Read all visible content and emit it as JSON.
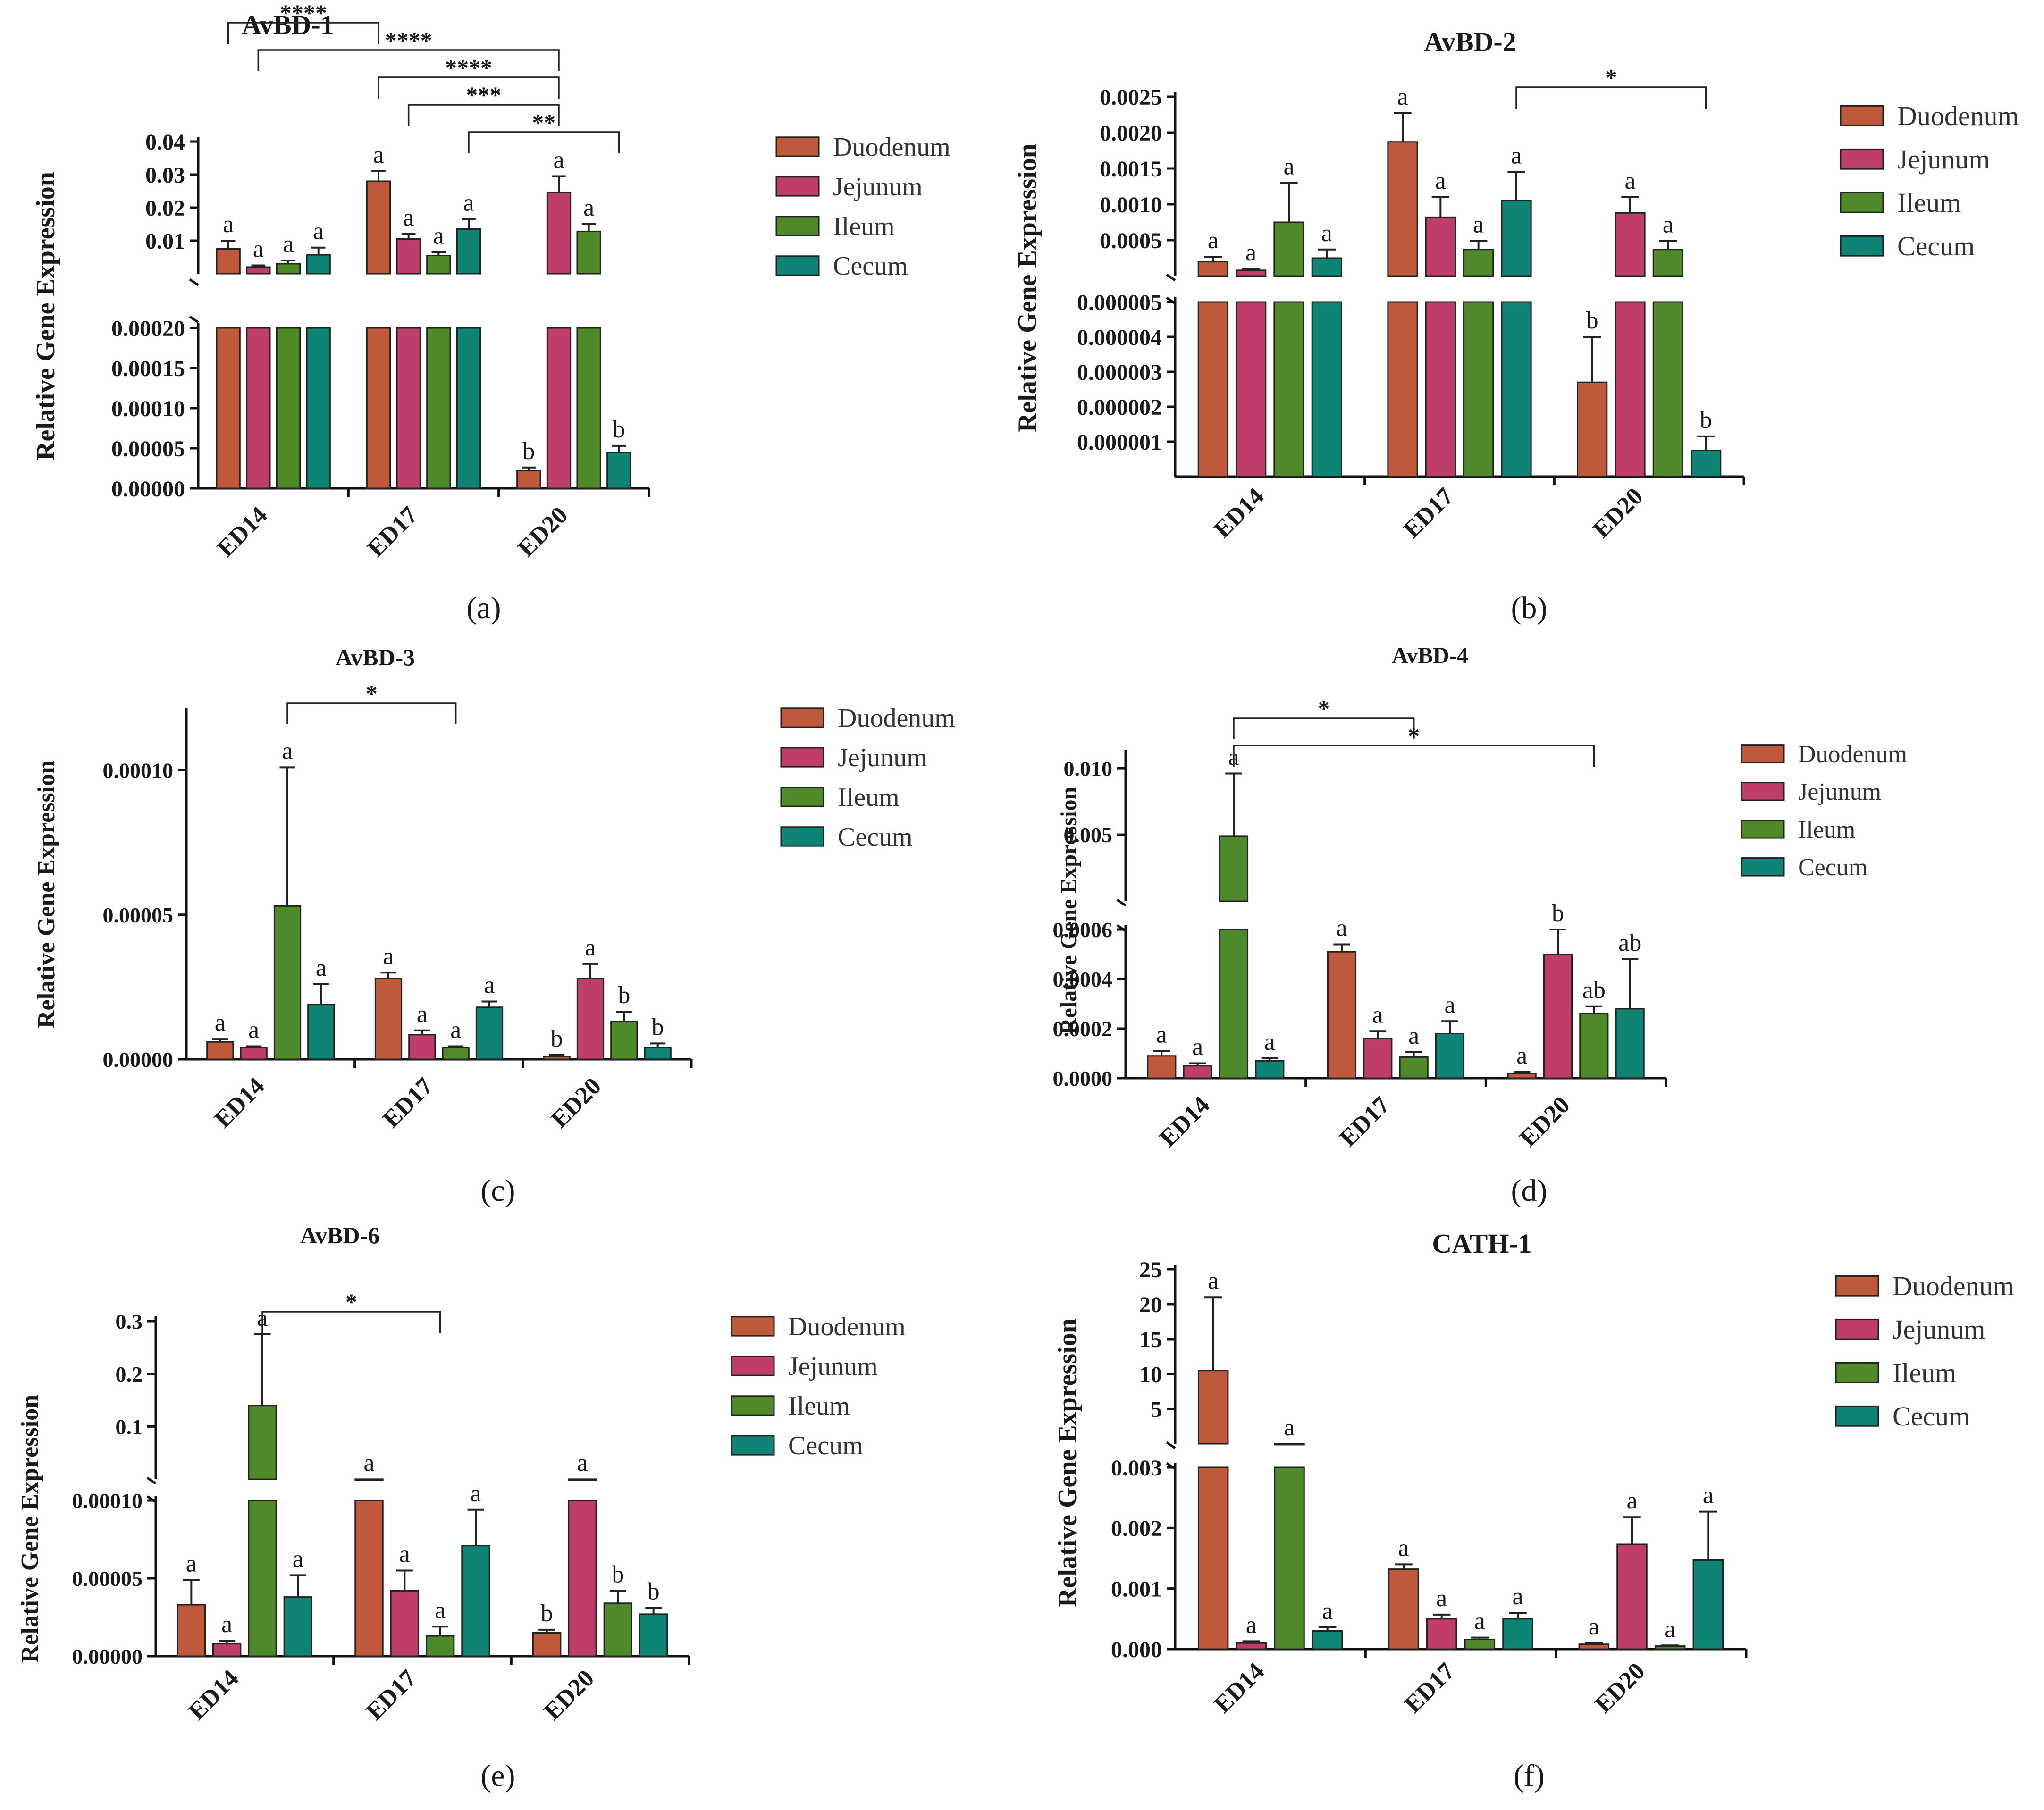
{
  "series_colors": {
    "Duodenum": "#c0593b",
    "Jejunum": "#bf3d6b",
    "Ileum": "#4e8a2a",
    "Cecum": "#0e8474"
  },
  "legend_text_colors": {
    "Duodenum": "#b0241a",
    "Jejunum": "#8a1f4d",
    "Ileum": "#3e7a1a",
    "Cecum": "#0e6e5e"
  },
  "chart_data": [
    {
      "panel": "(a)",
      "title": "AvBD-1",
      "type": "bar",
      "ylabel": "Relative Gene Expression",
      "categories": [
        "ED14",
        "ED17",
        "ED20"
      ],
      "upper": {
        "range": [
          0,
          0.04
        ],
        "ticks": [
          "0.01",
          "0.02",
          "0.03",
          "0.04"
        ],
        "tick_values": [
          0.01,
          0.02,
          0.03,
          0.04
        ]
      },
      "lower": {
        "range": [
          0,
          0.0002
        ],
        "ticks": [
          "0.00000",
          "0.00005",
          "0.00010",
          "0.00015",
          "0.00020"
        ],
        "tick_values": [
          0,
          5e-05,
          0.0001,
          0.00015,
          0.0002
        ]
      },
      "series": [
        {
          "name": "Duodenum",
          "values": [
            0.0075,
            0.028,
            2.2e-05
          ],
          "errors": [
            0.0025,
            0.003,
            4e-06
          ],
          "letters": [
            "a",
            "a",
            "b"
          ]
        },
        {
          "name": "Jejunum",
          "values": [
            0.002,
            0.0105,
            0.0245
          ],
          "errors": [
            0.0005,
            0.0015,
            0.005
          ],
          "letters": [
            "a",
            "a",
            "a"
          ]
        },
        {
          "name": "Ileum",
          "values": [
            0.003,
            0.0055,
            0.0128
          ],
          "errors": [
            0.001,
            0.001,
            0.0022
          ],
          "letters": [
            "a",
            "a",
            "a"
          ]
        },
        {
          "name": "Cecum",
          "values": [
            0.0057,
            0.0135,
            4.5e-05
          ],
          "errors": [
            0.0022,
            0.003,
            8e-06
          ],
          "letters": [
            "a",
            "a",
            "b"
          ]
        }
      ],
      "significance": [
        {
          "from": [
            0,
            0
          ],
          "to": [
            1,
            0
          ],
          "label": "****"
        },
        {
          "from": [
            0,
            1
          ],
          "to": [
            2,
            1
          ],
          "label": "****"
        },
        {
          "from": [
            1,
            0
          ],
          "to": [
            2,
            1
          ],
          "label": "****"
        },
        {
          "from": [
            1,
            1
          ],
          "to": [
            2,
            1
          ],
          "label": "***"
        },
        {
          "from": [
            1,
            3
          ],
          "to": [
            2,
            3
          ],
          "label": "**"
        }
      ]
    },
    {
      "panel": "(b)",
      "title": "AvBD-2",
      "type": "bar",
      "ylabel": "Relative Gene Expression",
      "categories": [
        "ED14",
        "ED17",
        "ED20"
      ],
      "upper": {
        "range": [
          0,
          0.0025
        ],
        "ticks": [
          "0.0005",
          "0.0010",
          "0.0015",
          "0.0020",
          "0.0025"
        ],
        "tick_values": [
          0.0005,
          0.001,
          0.0015,
          0.002,
          0.0025
        ]
      },
      "lower": {
        "range": [
          0,
          5e-06
        ],
        "ticks": [
          "0.000001",
          "0.000002",
          "0.000003",
          "0.000004",
          "0.000005"
        ],
        "tick_values": [
          1e-06,
          2e-06,
          3e-06,
          4e-06,
          5e-06
        ]
      },
      "series": [
        {
          "name": "Duodenum",
          "values": [
            0.0002,
            0.00187,
            2.7e-06
          ],
          "errors": [
            7e-05,
            0.0004,
            1.3e-06
          ],
          "letters": [
            "a",
            "a",
            "b"
          ]
        },
        {
          "name": "Jejunum",
          "values": [
            8e-05,
            0.00082,
            0.00088
          ],
          "errors": [
            2e-05,
            0.00028,
            0.00022
          ],
          "letters": [
            "a",
            "a",
            "a"
          ]
        },
        {
          "name": "Ileum",
          "values": [
            0.00075,
            0.00037,
            0.00037
          ],
          "errors": [
            0.00055,
            0.00012,
            0.00012
          ],
          "letters": [
            "a",
            "a",
            "a"
          ]
        },
        {
          "name": "Cecum",
          "values": [
            0.00025,
            0.00105,
            7.5e-07
          ],
          "errors": [
            0.00012,
            0.0004,
            4e-07
          ],
          "letters": [
            "a",
            "a",
            "b"
          ]
        }
      ],
      "significance": [
        {
          "from": [
            1,
            3
          ],
          "to": [
            2,
            3
          ],
          "label": "*"
        }
      ]
    },
    {
      "panel": "(c)",
      "title": "AvBD-3",
      "type": "bar",
      "ylabel": "Relative Gene Expression",
      "categories": [
        "ED14",
        "ED17",
        "ED20"
      ],
      "single": {
        "range": [
          0,
          0.00012
        ],
        "ticks": [
          "0.00000",
          "0.00005",
          "0.00010"
        ],
        "tick_values": [
          0,
          5e-05,
          0.0001
        ]
      },
      "series": [
        {
          "name": "Duodenum",
          "values": [
            6e-06,
            2.8e-05,
            1e-06
          ],
          "errors": [
            1e-06,
            2e-06,
            5e-07
          ],
          "letters": [
            "a",
            "a",
            "b"
          ]
        },
        {
          "name": "Jejunum",
          "values": [
            4e-06,
            8.5e-06,
            2.8e-05
          ],
          "errors": [
            5e-07,
            1.5e-06,
            5e-06
          ],
          "letters": [
            "a",
            "a",
            "a"
          ]
        },
        {
          "name": "Ileum",
          "values": [
            5.3e-05,
            4e-06,
            1.3e-05
          ],
          "errors": [
            4.8e-05,
            5e-07,
            3.5e-06
          ],
          "letters": [
            "a",
            "a",
            "b"
          ]
        },
        {
          "name": "Cecum",
          "values": [
            1.9e-05,
            1.8e-05,
            4e-06
          ],
          "errors": [
            7e-06,
            2e-06,
            1.5e-06
          ],
          "letters": [
            "a",
            "a",
            "b"
          ]
        }
      ],
      "significance": [
        {
          "from": [
            0,
            2
          ],
          "to": [
            1,
            2
          ],
          "label": "*"
        }
      ]
    },
    {
      "panel": "(d)",
      "title": "AvBD-4",
      "type": "bar",
      "ylabel": "Relative Gene Expression",
      "categories": [
        "ED14",
        "ED17",
        "ED20"
      ],
      "upper": {
        "range": [
          0,
          0.011
        ],
        "ticks": [
          "0.005",
          "0.010"
        ],
        "tick_values": [
          0.005,
          0.01
        ]
      },
      "lower": {
        "range": [
          0,
          0.0006
        ],
        "ticks": [
          "0.0000",
          "0.0002",
          "0.0004",
          "0.0006"
        ],
        "tick_values": [
          0,
          0.0002,
          0.0004,
          0.0006
        ]
      },
      "series": [
        {
          "name": "Duodenum",
          "values": [
            9e-05,
            0.00051,
            2e-05
          ],
          "errors": [
            2e-05,
            3e-05,
            5e-06
          ],
          "letters": [
            "a",
            "a",
            "a"
          ]
        },
        {
          "name": "Jejunum",
          "values": [
            5e-05,
            0.00016,
            0.0005
          ],
          "errors": [
            1e-05,
            3e-05,
            0.0001
          ],
          "letters": [
            "a",
            "a",
            "b"
          ]
        },
        {
          "name": "Ileum",
          "values": [
            0.0049,
            8.5e-05,
            0.00026
          ],
          "errors": [
            0.0047,
            2e-05,
            3e-05
          ],
          "letters": [
            "a",
            "a",
            "ab"
          ]
        },
        {
          "name": "Cecum",
          "values": [
            7e-05,
            0.00018,
            0.00028
          ],
          "errors": [
            1e-05,
            5e-05,
            0.0002
          ],
          "letters": [
            "a",
            "a",
            "ab"
          ]
        }
      ],
      "significance": [
        {
          "from": [
            0,
            2
          ],
          "to": [
            1,
            2
          ],
          "label": "*"
        },
        {
          "from": [
            0,
            2
          ],
          "to": [
            2,
            2
          ],
          "label": "*"
        }
      ]
    },
    {
      "panel": "(e)",
      "title": "AvBD-6",
      "type": "bar",
      "ylabel": "Relative Gene Expression",
      "categories": [
        "ED14",
        "ED17",
        "ED20"
      ],
      "upper": {
        "range": [
          0,
          0.3
        ],
        "ticks": [
          "0.1",
          "0.2",
          "0.3"
        ],
        "tick_values": [
          0.1,
          0.2,
          0.3
        ]
      },
      "lower": {
        "range": [
          0,
          0.0001
        ],
        "ticks": [
          "0.00000",
          "0.00005",
          "0.00010"
        ],
        "tick_values": [
          0,
          5e-05,
          0.0001
        ]
      },
      "series": [
        {
          "name": "Duodenum",
          "values": [
            3.3e-05,
            0.00012,
            1.5e-05
          ],
          "errors": [
            1.6e-05,
            0,
            2e-06
          ],
          "letters": [
            "a",
            "a",
            "b"
          ]
        },
        {
          "name": "Jejunum",
          "values": [
            8e-06,
            4.2e-05,
            0.00012
          ],
          "errors": [
            2e-06,
            1.3e-05,
            0
          ],
          "letters": [
            "a",
            "a",
            "a"
          ]
        },
        {
          "name": "Ileum",
          "values": [
            0.14,
            1.3e-05,
            3.4e-05
          ],
          "errors": [
            0.135,
            6e-06,
            8e-06
          ],
          "letters": [
            "a",
            "a",
            "b"
          ]
        },
        {
          "name": "Cecum",
          "values": [
            3.8e-05,
            7.1e-05,
            2.7e-05
          ],
          "errors": [
            1.4e-05,
            2.3e-05,
            4e-06
          ],
          "letters": [
            "a",
            "a",
            "b"
          ]
        }
      ],
      "significance": [
        {
          "from": [
            0,
            2
          ],
          "to": [
            1,
            2
          ],
          "label": "*"
        }
      ]
    },
    {
      "panel": "(f)",
      "title": "CATH-1",
      "type": "bar",
      "ylabel": "Relative Gene Expression",
      "categories": [
        "ED14",
        "ED17",
        "ED20"
      ],
      "upper": {
        "range": [
          0,
          25
        ],
        "ticks": [
          "5",
          "10",
          "15",
          "20",
          "25"
        ],
        "tick_values": [
          5,
          10,
          15,
          20,
          25
        ]
      },
      "lower": {
        "range": [
          0,
          0.003
        ],
        "ticks": [
          "0.000",
          "0.001",
          "0.002",
          "0.003"
        ],
        "tick_values": [
          0,
          0.001,
          0.002,
          0.003
        ]
      },
      "series": [
        {
          "name": "Duodenum",
          "values": [
            10.5,
            0.00132,
            8e-05
          ],
          "errors": [
            10.5,
            8e-05,
            2e-05
          ],
          "letters": [
            "a",
            "a",
            "a"
          ]
        },
        {
          "name": "Jejunum",
          "values": [
            0.0001,
            0.0005,
            0.00173
          ],
          "errors": [
            3e-05,
            7e-05,
            0.00045
          ],
          "letters": [
            "a",
            "a",
            "a"
          ]
        },
        {
          "name": "Ileum",
          "values": [
            0.004,
            0.00016,
            5e-05
          ],
          "errors": [
            0,
            3e-05,
            1e-05
          ],
          "letters": [
            "a",
            "a",
            "a"
          ]
        },
        {
          "name": "Cecum",
          "values": [
            0.0003,
            0.0005,
            0.00147
          ],
          "errors": [
            6e-05,
            0.0001,
            0.0008
          ],
          "letters": [
            "a",
            "a",
            "a"
          ]
        }
      ],
      "significance": []
    }
  ]
}
